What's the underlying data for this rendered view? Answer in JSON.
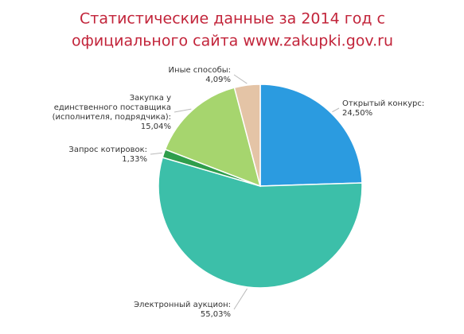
{
  "chart_data": {
    "type": "pie",
    "title": [
      "Статистические данные за 2014 год с",
      "официального сайта www.zakupki.gov.ru"
    ],
    "categories": [
      [
        "Открытый конкурс:"
      ],
      [
        "Электронный аукцион:"
      ],
      [
        "Запрос котировок:"
      ],
      [
        "Закупка у",
        "единственного поставщика",
        "(исполнителя, подрядчика):"
      ],
      [
        "Иные способы:"
      ]
    ],
    "values": [
      24.5,
      55.03,
      1.33,
      15.04,
      4.09
    ],
    "value_labels": [
      "24,50%",
      "55,03%",
      "1,33%",
      "15,04%",
      "4,09%"
    ],
    "colors": [
      "#2b9be0",
      "#3cbfa9",
      "#2f9e4c",
      "#a6d56e",
      "#e4c4a6"
    ]
  }
}
